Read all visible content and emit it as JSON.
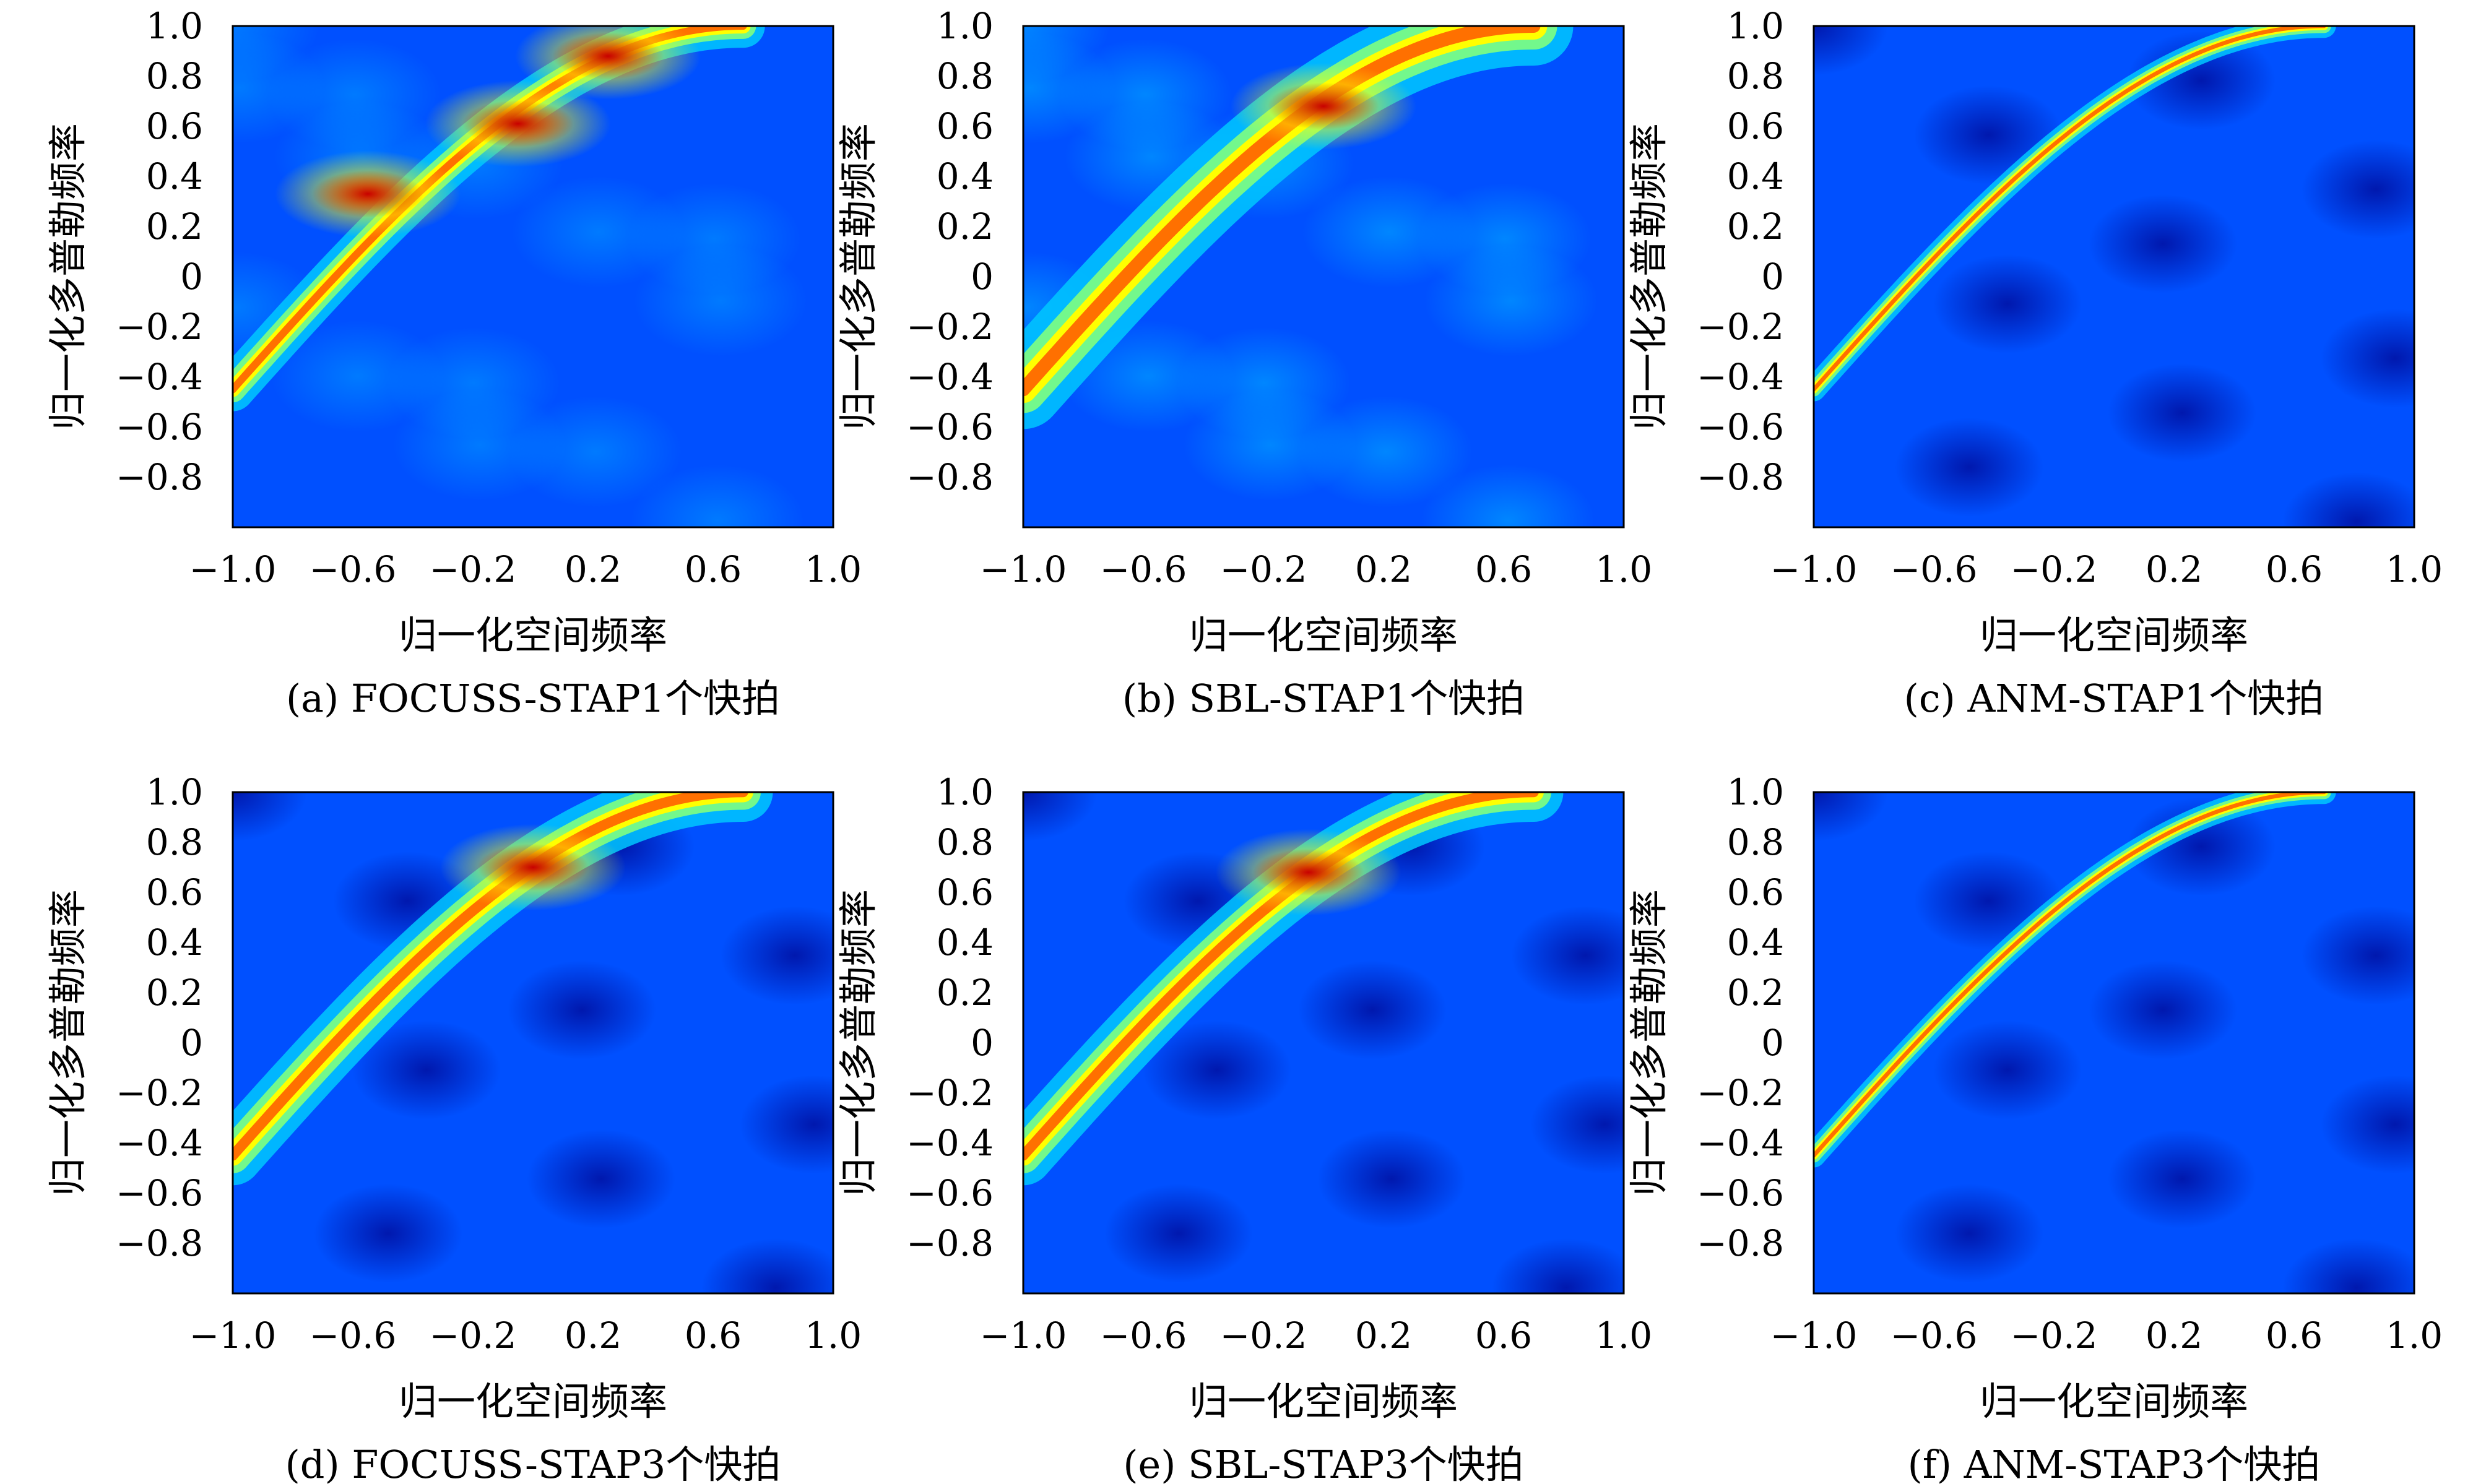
{
  "colormap": [
    "#00008b",
    "#0050ff",
    "#00c8ff",
    "#80ff80",
    "#ffff00",
    "#ff7000",
    "#c80000"
  ],
  "chart_data": [
    {
      "type": "heatmap",
      "caption": "(a) FOCUSS-STAP1个快拍",
      "xlabel": "归一化空间频率",
      "ylabel": "归一化多普勒频率",
      "xlim": [
        -1.0,
        1.0
      ],
      "ylim": [
        -1.0,
        1.0
      ],
      "xticks": [
        "−1.0",
        "−0.6",
        "−0.2",
        "0.2",
        "0.6",
        "1.0"
      ],
      "yticks": [
        "1.0",
        "0.8",
        "0.6",
        "0.4",
        "0.2",
        "0",
        "−0.2",
        "−0.4",
        "−0.6",
        "−0.8"
      ],
      "ridge": "clutter ridge, fragmented into bright spots",
      "hotspots": [
        [
          -0.55,
          0.33
        ],
        [
          -0.05,
          0.61
        ],
        [
          0.25,
          0.88
        ]
      ],
      "background": 0.35
    },
    {
      "type": "heatmap",
      "caption": "(b) SBL-STAP1个快拍",
      "xlabel": "归一化空间频率",
      "ylabel": "归一化多普勒频率",
      "xlim": [
        -1.0,
        1.0
      ],
      "ylim": [
        -1.0,
        1.0
      ],
      "xticks": [
        "−1.0",
        "−0.6",
        "−0.2",
        "0.2",
        "0.6",
        "1.0"
      ],
      "yticks": [
        "1.0",
        "0.8",
        "0.6",
        "0.4",
        "0.2",
        "0",
        "−0.2",
        "−0.4",
        "−0.6",
        "−0.8"
      ],
      "ridge": "broad clutter ridge",
      "hotspots": [
        [
          0.0,
          0.68
        ]
      ],
      "background": 0.45
    },
    {
      "type": "heatmap",
      "caption": "(c) ANM-STAP1个快拍",
      "xlabel": "归一化空间频率",
      "ylabel": "归一化多普勒频率",
      "xlim": [
        -1.0,
        1.0
      ],
      "ylim": [
        -1.0,
        1.0
      ],
      "xticks": [
        "−1.0",
        "−0.6",
        "−0.2",
        "0.2",
        "0.6",
        "1.0"
      ],
      "yticks": [
        "1.0",
        "0.8",
        "0.6",
        "0.4",
        "0.2",
        "0",
        "−0.2",
        "−0.4",
        "−0.6",
        "−0.8"
      ],
      "ridge": "thin clutter ridge",
      "hotspots": [],
      "background": 0.15
    },
    {
      "type": "heatmap",
      "caption": "(d) FOCUSS-STAP3个快拍",
      "xlabel": "归一化空间频率",
      "ylabel": "归一化多普勒频率",
      "xlim": [
        -1.0,
        1.0
      ],
      "ylim": [
        -1.0,
        1.0
      ],
      "xticks": [
        "−1.0",
        "−0.6",
        "−0.2",
        "0.2",
        "0.6",
        "1.0"
      ],
      "yticks": [
        "1.0",
        "0.8",
        "0.6",
        "0.4",
        "0.2",
        "0",
        "−0.2",
        "−0.4",
        "−0.6",
        "−0.8"
      ],
      "ridge": "medium clutter ridge",
      "hotspots": [
        [
          0.0,
          0.7
        ]
      ],
      "background": 0.22
    },
    {
      "type": "heatmap",
      "caption": "(e) SBL-STAP3个快拍",
      "xlabel": "归一化空间频率",
      "ylabel": "归一化多普勒频率",
      "xlim": [
        -1.0,
        1.0
      ],
      "ylim": [
        -1.0,
        1.0
      ],
      "xticks": [
        "−1.0",
        "−0.6",
        "−0.2",
        "0.2",
        "0.6",
        "1.0"
      ],
      "yticks": [
        "1.0",
        "0.8",
        "0.6",
        "0.4",
        "0.2",
        "0",
        "−0.2",
        "−0.4",
        "−0.6",
        "−0.8"
      ],
      "ridge": "medium clutter ridge",
      "hotspots": [
        [
          -0.05,
          0.68
        ]
      ],
      "background": 0.22
    },
    {
      "type": "heatmap",
      "caption": "(f) ANM-STAP3个快拍",
      "xlabel": "归一化空间频率",
      "ylabel": "归一化多普勒频率",
      "xlim": [
        -1.0,
        1.0
      ],
      "ylim": [
        -1.0,
        1.0
      ],
      "xticks": [
        "−1.0",
        "−0.6",
        "−0.2",
        "0.2",
        "0.6",
        "1.0"
      ],
      "yticks": [
        "1.0",
        "0.8",
        "0.6",
        "0.4",
        "0.2",
        "0",
        "−0.2",
        "−0.4",
        "−0.6",
        "−0.8"
      ],
      "ridge": "thin clutter ridge",
      "hotspots": [],
      "background": 0.12
    }
  ]
}
